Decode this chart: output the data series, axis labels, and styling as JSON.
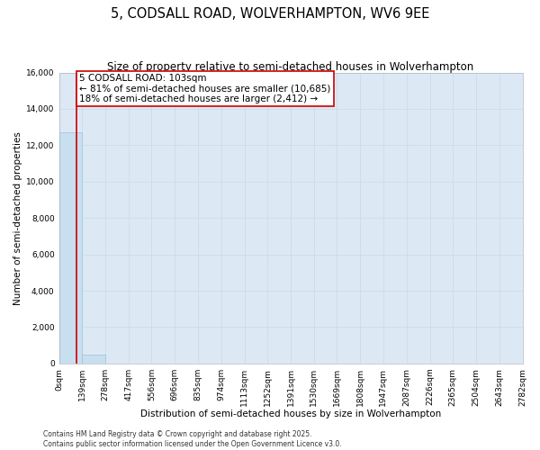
{
  "title": "5, CODSALL ROAD, WOLVERHAMPTON, WV6 9EE",
  "subtitle": "Size of property relative to semi-detached houses in Wolverhampton",
  "xlabel": "Distribution of semi-detached houses by size in Wolverhampton",
  "ylabel": "Number of semi-detached properties",
  "property_size": 103,
  "pct_smaller": 81,
  "count_smaller": 10685,
  "pct_larger": 18,
  "count_larger": 2412,
  "bin_edges": [
    0,
    139,
    278,
    417,
    556,
    696,
    835,
    974,
    1113,
    1252,
    1391,
    1530,
    1669,
    1808,
    1947,
    2087,
    2226,
    2365,
    2504,
    2643,
    2782
  ],
  "bin_labels": [
    "0sqm",
    "139sqm",
    "278sqm",
    "417sqm",
    "556sqm",
    "696sqm",
    "835sqm",
    "974sqm",
    "1113sqm",
    "1252sqm",
    "1391sqm",
    "1530sqm",
    "1669sqm",
    "1808sqm",
    "1947sqm",
    "2087sqm",
    "2226sqm",
    "2365sqm",
    "2504sqm",
    "2643sqm",
    "2782sqm"
  ],
  "bar_heights": [
    12700,
    500,
    0,
    0,
    0,
    0,
    0,
    0,
    0,
    0,
    0,
    0,
    0,
    0,
    0,
    0,
    0,
    0,
    0,
    0
  ],
  "bar_color": "#c8dff0",
  "bar_edge_color": "#a0c0d8",
  "grid_color": "#c8d8e8",
  "plot_bg_color": "#dce9f5",
  "fig_bg_color": "#ffffff",
  "vline_color": "#cc0000",
  "annotation_box_color": "#ffffff",
  "annotation_box_edge": "#cc0000",
  "ylim": [
    0,
    16000
  ],
  "yticks": [
    0,
    2000,
    4000,
    6000,
    8000,
    10000,
    12000,
    14000,
    16000
  ],
  "footer": "Contains HM Land Registry data © Crown copyright and database right 2025.\nContains public sector information licensed under the Open Government Licence v3.0.",
  "title_fontsize": 10.5,
  "subtitle_fontsize": 8.5,
  "axis_label_fontsize": 7.5,
  "tick_fontsize": 6.5,
  "annotation_fontsize": 7.5,
  "footer_fontsize": 5.5
}
